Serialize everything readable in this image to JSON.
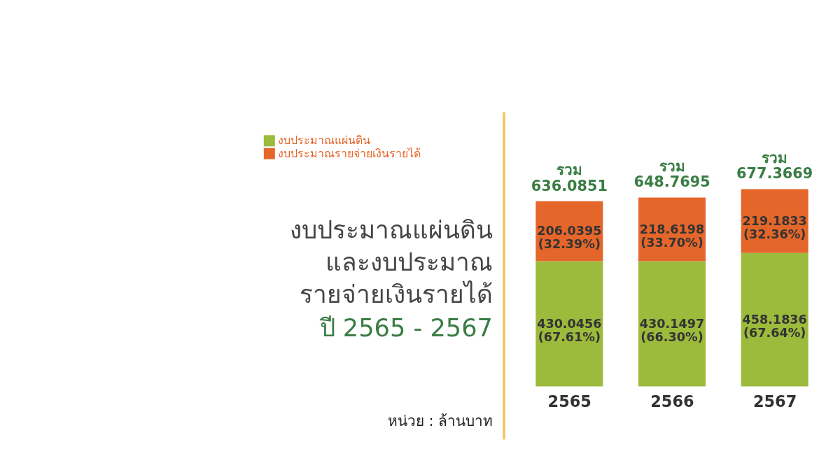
{
  "chart_data": {
    "type": "bar",
    "stacked": true,
    "title": "งบประมาณแผ่นดิน\nและงบประมาณ\nรายจ่ายเงินรายได้",
    "subtitle": "ปี 2565 - 2567",
    "categories": [
      "2565",
      "2566",
      "2567"
    ],
    "series": [
      {
        "name": "งบประมาณแผ่นดิน",
        "color": "#9cba3c",
        "values": [
          430.0456,
          430.1497,
          458.1836
        ],
        "value_labels": [
          "430.0456\n(67.61%)",
          "430.1497\n(66.30%)",
          "458.1836\n(67.64%)"
        ]
      },
      {
        "name": "งบประมาณรายจ่ายเงินรายได้",
        "color": "#e5662a",
        "values": [
          206.0395,
          218.6198,
          219.1833
        ],
        "value_labels": [
          "206.0395\n(32.39%)",
          "218.6198\n(33.70%)",
          "219.1833\n(32.36%)"
        ]
      }
    ],
    "totals": [
      "รวม\n636.0851",
      "รวม\n648.7695",
      "รวม\n677.3669"
    ],
    "annotations": [
      "หน่วย : ล้านบาท"
    ],
    "legend": "top left",
    "grid": false
  }
}
